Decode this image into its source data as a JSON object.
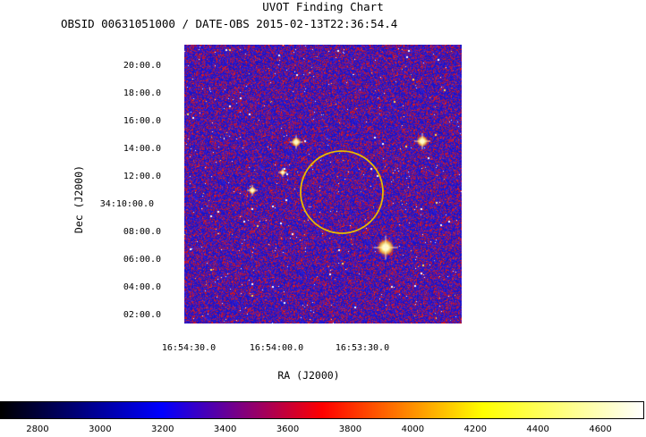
{
  "chart_data": {
    "type": "heatmap",
    "title": "UVOT Finding Chart",
    "subtitle": "OBSID 00631051000 / DATE-OBS 2015-02-13T22:36:54.4",
    "xlabel": "RA (J2000)",
    "ylabel": "Dec (J2000)",
    "x_ticks": [
      "16:54:30.0",
      "16:54:00.0",
      "16:53:30.0"
    ],
    "y_ticks": [
      "20:00.0",
      "18:00.0",
      "16:00.0",
      "14:00.0",
      "12:00.0",
      "34:10:00.0",
      "08:00.0",
      "06:00.0",
      "04:00.0",
      "02:00.0"
    ],
    "colorbar": {
      "ticks": [
        2800,
        3000,
        3200,
        3400,
        3600,
        3800,
        4000,
        4200,
        4400,
        4600
      ],
      "range": [
        2680,
        4740
      ],
      "colormap": [
        "#000000",
        "#0000ff",
        "#ff0000",
        "#ffff00",
        "#ffffff"
      ]
    },
    "region": {
      "shape": "circle",
      "color": "#e8b800"
    },
    "colors": {
      "background_noise_low": "#2a1fc8",
      "background_noise_mid": "#7a1a90",
      "background_noise_high": "#d01515"
    }
  }
}
